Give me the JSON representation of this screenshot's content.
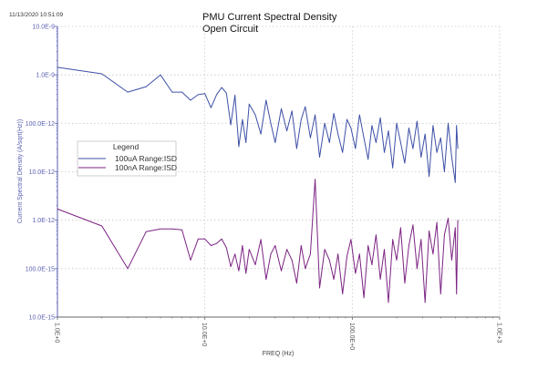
{
  "timestamp": "11/13/2020 10:51:09",
  "chart_data": {
    "type": "line",
    "title": "PMU Current Spectral Density",
    "subtitle": "Open Circuit",
    "xlabel": "FREQ (Hz)",
    "ylabel": "Current Spectral Density (A/sqrt(Hz))",
    "x_scale": "log",
    "y_scale": "log",
    "xlim": [
      1,
      1000
    ],
    "ylim": [
      1e-14,
      1e-08
    ],
    "grid": true,
    "legend_position": "left-middle",
    "legend_title": "Legend",
    "x_tick_labels": [
      "1.0E+0",
      "10.0E+0",
      "100.0E+0",
      "1.0E+3"
    ],
    "x_tick_values": [
      1,
      10,
      100,
      1000
    ],
    "y_tick_labels": [
      "10.0E-9",
      "1.0E-9",
      "100.0E-12",
      "10.0E-12",
      "1.0E-12",
      "100.0E-15",
      "10.0E-15"
    ],
    "y_tick_values": [
      1e-08,
      1e-09,
      1e-10,
      1e-11,
      1e-12,
      1e-13,
      1e-14
    ],
    "series": [
      {
        "name": "100uA Range:ISD",
        "color": "#3d4fa6",
        "x": [
          1,
          2,
          3,
          4,
          5,
          6,
          7,
          8,
          9,
          10,
          11,
          12,
          13,
          14,
          15,
          16,
          17,
          18,
          19,
          20,
          22,
          24,
          26,
          28,
          30,
          33,
          36,
          39,
          42,
          45,
          48,
          52,
          56,
          60,
          65,
          70,
          75,
          80,
          86,
          92,
          98,
          105,
          112,
          120,
          128,
          136,
          145,
          155,
          165,
          176,
          188,
          200,
          213,
          227,
          242,
          258,
          275,
          293,
          312,
          332,
          353,
          375,
          398,
          422,
          447,
          473,
          500,
          510,
          520
        ],
        "y": [
          1.43e-09,
          1.05e-09,
          4.4e-10,
          5.7e-10,
          1e-09,
          4.4e-10,
          4.4e-10,
          3e-10,
          3.9e-10,
          4.1e-10,
          2.1e-10,
          3.9e-10,
          5.5e-10,
          4.2e-10,
          9.3e-11,
          3.8e-10,
          3.3e-11,
          1.2e-10,
          4e-11,
          2.5e-10,
          1.5e-10,
          6e-11,
          3e-10,
          1e-10,
          4e-11,
          2e-10,
          7e-11,
          1.8e-10,
          3e-11,
          1.2e-10,
          2.2e-10,
          5e-11,
          1.5e-10,
          2e-11,
          1e-10,
          4e-11,
          1.6e-10,
          6e-11,
          2.5e-11,
          1.2e-10,
          8e-11,
          3e-11,
          1.5e-10,
          5e-11,
          1.8e-11,
          9e-11,
          4e-11,
          1.3e-10,
          2.5e-11,
          7e-11,
          1.2e-11,
          1e-10,
          4e-11,
          1.5e-11,
          8e-11,
          3e-11,
          1.1e-10,
          2e-11,
          6e-11,
          8e-12,
          9e-11,
          2.5e-11,
          5e-11,
          1e-11,
          1e-10,
          2e-11,
          6e-12,
          9e-11,
          3e-11
        ]
      },
      {
        "name": "100nA Range:ISD",
        "color": "#7b2382",
        "x": [
          1,
          2,
          3,
          4,
          5,
          6,
          7,
          8,
          9,
          10,
          11,
          12,
          13,
          14,
          15,
          16,
          17,
          18,
          19,
          20,
          22,
          24,
          26,
          28,
          30,
          33,
          36,
          39,
          42,
          45,
          48,
          52,
          56,
          60,
          65,
          70,
          75,
          80,
          86,
          92,
          98,
          105,
          112,
          120,
          128,
          136,
          145,
          155,
          165,
          176,
          188,
          200,
          213,
          227,
          242,
          258,
          275,
          293,
          312,
          332,
          353,
          375,
          398,
          422,
          447,
          473,
          500,
          510,
          520
        ],
        "y": [
          1.7e-12,
          7.6e-13,
          1e-13,
          5.8e-13,
          6.6e-13,
          6.6e-13,
          6.3e-13,
          1.5e-13,
          4.1e-13,
          4.1e-13,
          3e-13,
          3.3e-13,
          4.1e-13,
          2.7e-13,
          1.1e-13,
          2e-13,
          9e-14,
          3e-13,
          8e-14,
          2.5e-13,
          1.2e-13,
          4e-13,
          6e-14,
          2e-13,
          3e-13,
          9e-14,
          2.5e-13,
          1.5e-13,
          5e-14,
          3e-13,
          1e-13,
          2e-13,
          7e-12,
          4e-14,
          2.5e-13,
          1.5e-13,
          6e-14,
          2e-13,
          3e-14,
          1.8e-13,
          4e-13,
          8e-14,
          2e-13,
          2.5e-14,
          3e-13,
          1.2e-13,
          5e-13,
          6e-14,
          2.5e-13,
          2e-14,
          4e-13,
          1.5e-13,
          7e-13,
          5e-14,
          3e-13,
          8e-13,
          1e-13,
          4e-13,
          2e-14,
          6e-13,
          2e-13,
          9e-13,
          3e-14,
          5e-13,
          1.1e-12,
          1.5e-13,
          7e-13,
          3e-14,
          1e-12
        ]
      }
    ]
  }
}
